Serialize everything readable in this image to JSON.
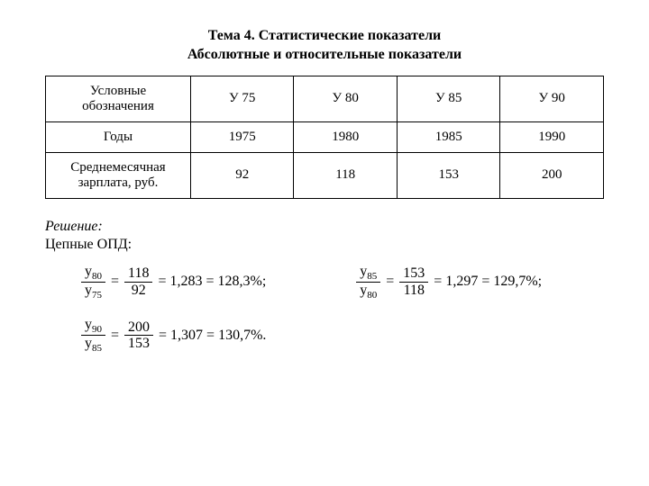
{
  "title": {
    "line1": "Тема 4. Статистические показатели",
    "line2": "Абсолютные и относительные показатели"
  },
  "table": {
    "rows": [
      {
        "label": "Условные",
        "sublabel": "обозначения",
        "cells": [
          "У 75",
          "У 80",
          "У 85",
          "У 90"
        ]
      },
      {
        "label": "Годы",
        "cells": [
          "1975",
          "1980",
          "1985",
          "1990"
        ]
      },
      {
        "label": "Среднемесячная",
        "sublabel": "зарплата, руб.",
        "cells": [
          "92",
          "118",
          "153",
          "200"
        ]
      }
    ]
  },
  "solution": {
    "label": "Решение:",
    "chain_label": "Цепные ОПД:"
  },
  "formulas": [
    {
      "frac1_num": "y",
      "frac1_num_sub": "80",
      "frac1_den": "y",
      "frac1_den_sub": "75",
      "eq1": "=",
      "frac2_num": "118",
      "frac2_den": "92",
      "eq2": "= 1,283 = 128,3%;"
    },
    {
      "frac1_num": "y",
      "frac1_num_sub": "85",
      "frac1_den": "y",
      "frac1_den_sub": "80",
      "eq1": "=",
      "frac2_num": "153",
      "frac2_den": "118",
      "eq2": "= 1,297 = 129,7%;"
    },
    {
      "frac1_num": "y",
      "frac1_num_sub": "90",
      "frac1_den": "y",
      "frac1_den_sub": "85",
      "eq1": "=",
      "frac2_num": "200",
      "frac2_den": "153",
      "eq2": "= 1,307 = 130,7%."
    }
  ],
  "styling": {
    "background_color": "#ffffff",
    "text_color": "#000000",
    "border_color": "#000000",
    "font_family": "Times New Roman",
    "title_fontsize": 16,
    "table_fontsize": 15,
    "formula_fontsize": 17
  }
}
